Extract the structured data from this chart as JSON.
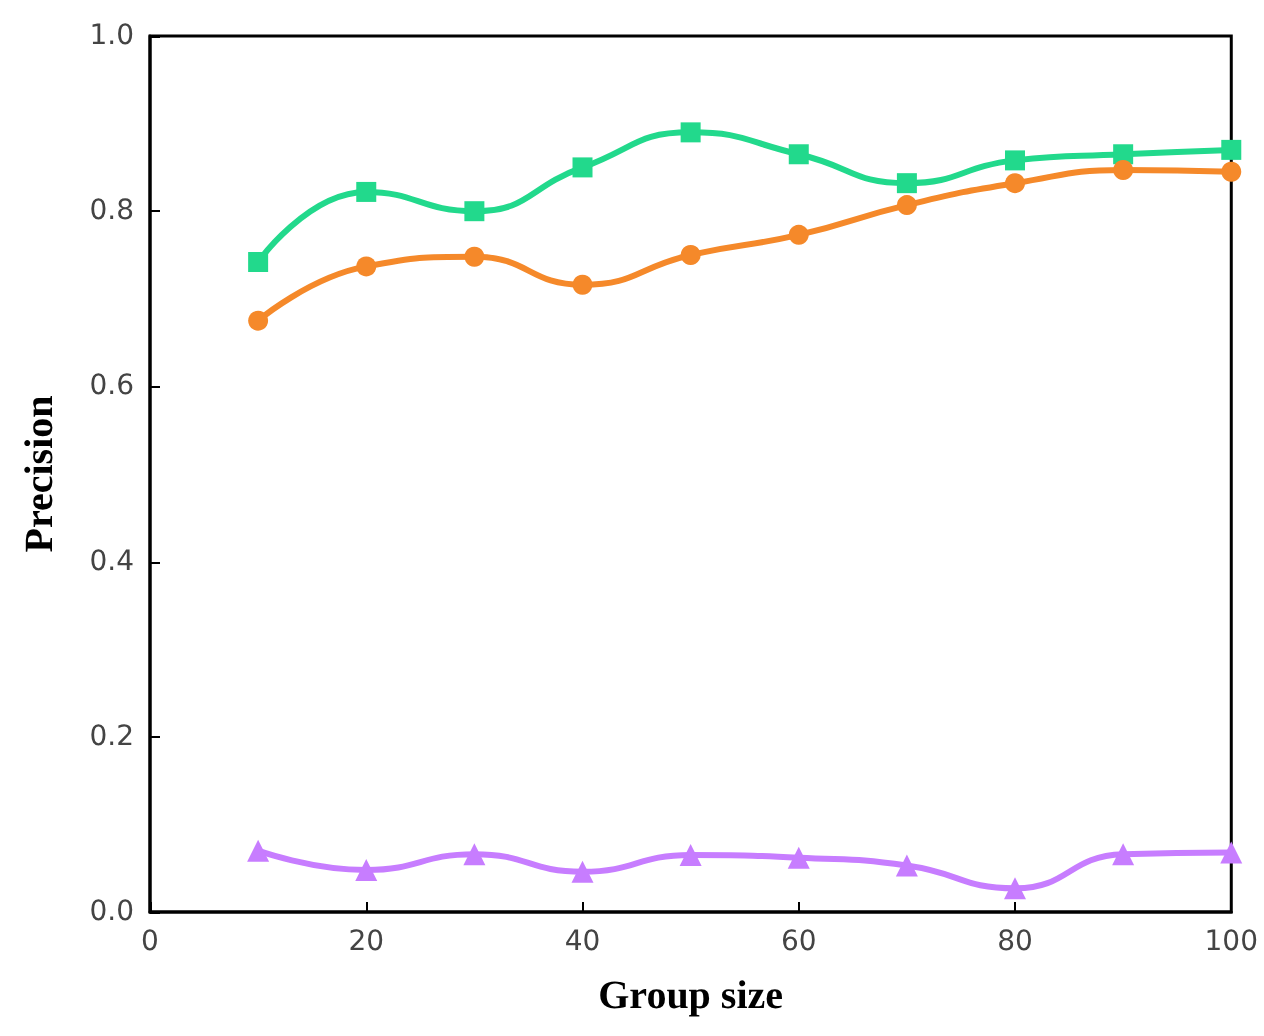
{
  "chart_data": {
    "type": "line",
    "xlabel": "Group size",
    "ylabel": "Precision",
    "x": [
      10,
      20,
      30,
      40,
      50,
      60,
      70,
      80,
      90,
      100
    ],
    "series": [
      {
        "color": "#22d98c",
        "marker": "square",
        "values": [
          0.742,
          0.822,
          0.8,
          0.85,
          0.89,
          0.865,
          0.832,
          0.858,
          0.865,
          0.87
        ]
      },
      {
        "color": "#f5892a",
        "marker": "circle",
        "values": [
          0.675,
          0.737,
          0.748,
          0.716,
          0.75,
          0.773,
          0.807,
          0.832,
          0.847,
          0.845
        ]
      },
      {
        "color": "#c77dff",
        "marker": "triangle",
        "values": [
          0.07,
          0.048,
          0.066,
          0.046,
          0.065,
          0.062,
          0.053,
          0.027,
          0.066,
          0.068
        ]
      }
    ],
    "xlim": [
      0,
      100
    ],
    "xticks": [
      0,
      20,
      40,
      60,
      80,
      100
    ],
    "ylim": [
      0,
      1
    ],
    "yticks": [
      {
        "value": 0,
        "label": "0.0"
      },
      {
        "value": 0.2,
        "label": "0.2"
      },
      {
        "value": 0.4,
        "label": "0.4"
      },
      {
        "value": 0.6,
        "label": "0.6"
      },
      {
        "value": 0.8,
        "label": "0.8"
      },
      {
        "value": 1,
        "label": "1.0"
      }
    ],
    "grid": false
  }
}
